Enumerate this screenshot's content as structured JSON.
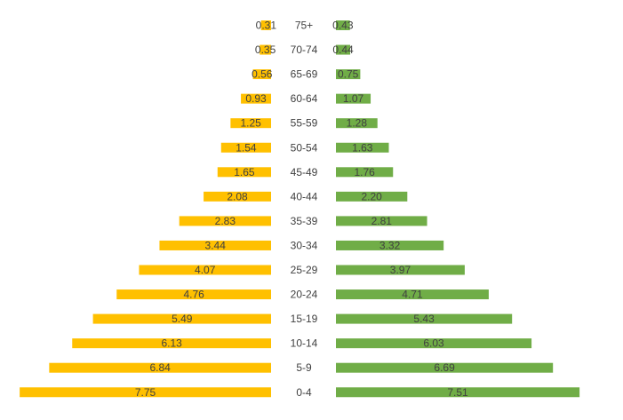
{
  "chart_data": {
    "type": "bar",
    "orientation": "horizontal",
    "layout": "population-pyramid",
    "categories": [
      "0-4",
      "5-9",
      "10-14",
      "15-19",
      "20-24",
      "25-29",
      "30-34",
      "35-39",
      "40-44",
      "45-49",
      "50-54",
      "55-59",
      "60-64",
      "65-69",
      "70-74",
      "75+"
    ],
    "series": [
      {
        "side": "left",
        "color": "#FFC000",
        "values": [
          7.75,
          6.84,
          6.13,
          5.49,
          4.76,
          4.07,
          3.44,
          2.83,
          2.08,
          1.65,
          1.54,
          1.25,
          0.93,
          0.56,
          0.35,
          0.31
        ],
        "labels": [
          "7.75",
          "6.84",
          "6.13",
          "5.49",
          "4.76",
          "4.07",
          "3.44",
          "2.83",
          "2.08",
          "1.65",
          "1.54",
          "1.25",
          "0.93",
          "0.56",
          "0.35",
          "0.31"
        ]
      },
      {
        "side": "right",
        "color": "#70AD47",
        "values": [
          7.51,
          6.69,
          6.03,
          5.43,
          4.71,
          3.97,
          3.32,
          2.81,
          2.2,
          1.76,
          1.63,
          1.28,
          1.07,
          0.75,
          0.44,
          0.43
        ],
        "labels": [
          "7.51",
          "6.69",
          "6.03",
          "5.43",
          "4.71",
          "3.97",
          "3.32",
          "2.81",
          "2.20",
          "1.76",
          "1.63",
          "1.28",
          "1.07",
          "0.75",
          "0.44",
          "0.43"
        ]
      }
    ],
    "title": "",
    "xlabel": "",
    "ylabel": "",
    "grid": false,
    "legend": "none"
  }
}
